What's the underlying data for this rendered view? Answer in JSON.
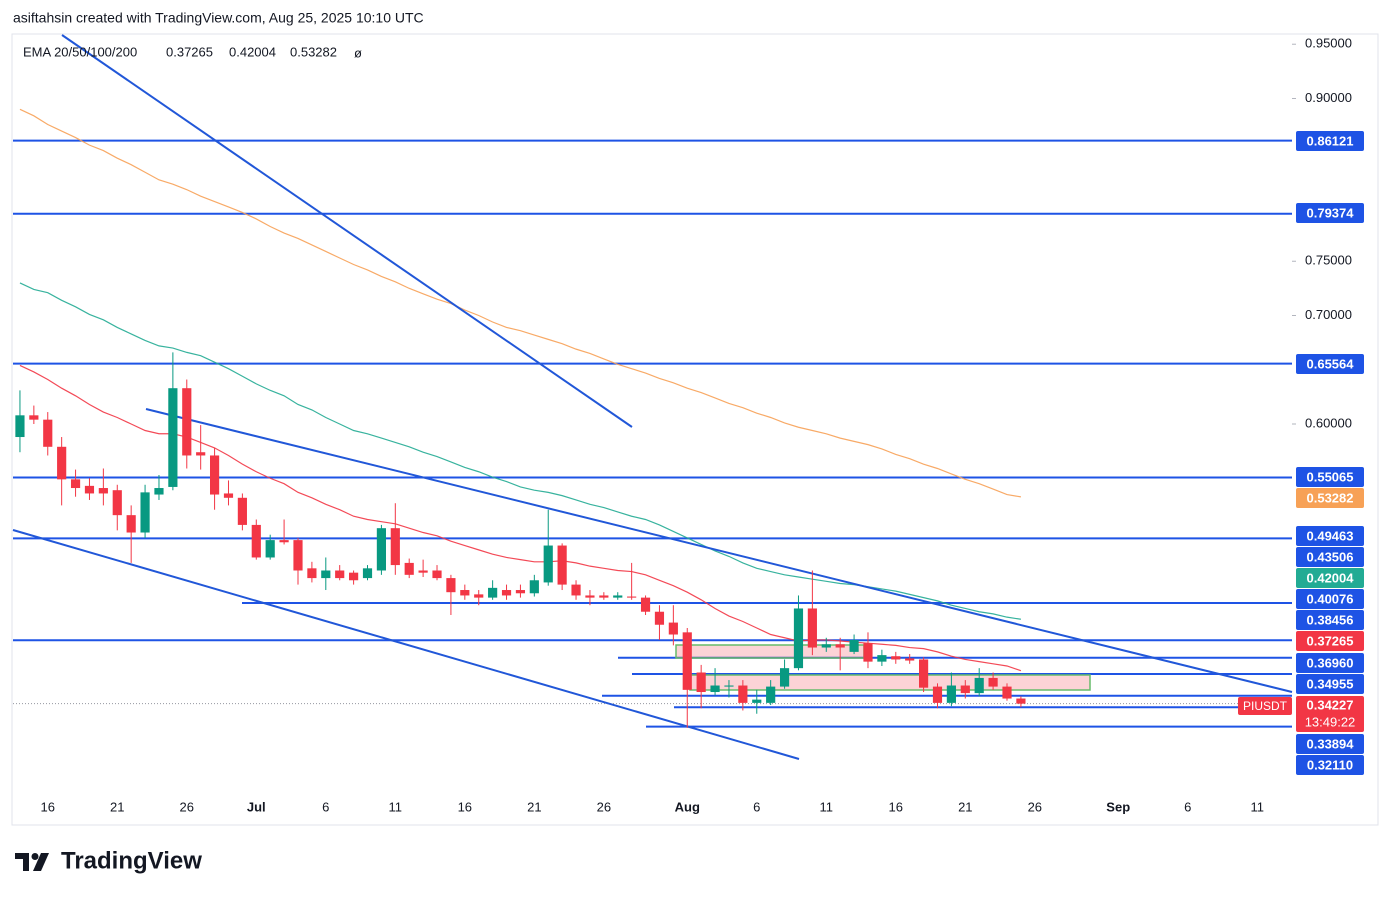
{
  "chart_data": {
    "type": "candlestick",
    "title": "asiftahsin created with TradingView.com, Aug 25, 2025 10:10 UTC",
    "indicator": {
      "name": "EMA 20/50/100/200",
      "missing": "ø"
    },
    "symbol": "PIUSDT",
    "countdown": "13:49:22",
    "categories": [
      null,
      null,
      "16",
      null,
      null,
      null,
      null,
      "21",
      null,
      null,
      null,
      null,
      "26",
      null,
      null,
      null,
      null,
      "Jul",
      null,
      null,
      null,
      null,
      "6",
      null,
      null,
      null,
      null,
      "11",
      null,
      null,
      null,
      null,
      "16",
      null,
      null,
      null,
      null,
      "21",
      null,
      null,
      null,
      null,
      "26",
      null,
      null,
      null,
      null,
      null,
      "Aug",
      null,
      null,
      null,
      null,
      "6",
      null,
      null,
      null,
      null,
      "11",
      null,
      null,
      null,
      null,
      "16",
      null,
      null,
      null,
      null,
      "21",
      null,
      null,
      null,
      null,
      "26",
      null,
      null,
      null,
      null,
      null,
      "Sep",
      null,
      null,
      null,
      null,
      "6",
      null,
      null,
      null,
      null,
      "11",
      null,
      null
    ],
    "open": [
      0.588,
      0.608,
      0.604,
      0.579,
      0.549,
      0.543,
      0.541,
      0.539,
      0.516,
      0.5,
      0.535,
      0.542,
      0.633,
      0.574,
      0.571,
      0.536,
      0.532,
      0.507,
      0.477,
      0.493,
      0.493,
      0.467,
      0.458,
      0.465,
      0.463,
      0.458,
      0.465,
      0.504,
      0.472,
      0.465,
      0.465,
      0.458,
      0.447,
      0.443,
      0.44,
      0.447,
      0.447,
      0.444,
      0.454,
      0.488,
      0.452,
      0.442,
      0.442,
      0.44,
      0.441,
      0.44,
      0.427,
      0.417,
      0.408,
      0.371,
      0.353,
      0.358,
      0.359,
      0.343,
      0.343,
      0.358,
      0.375,
      0.43,
      0.394,
      0.397,
      0.39,
      0.398,
      0.381,
      0.386,
      0.384,
      0.383,
      0.358,
      0.343,
      0.359,
      0.352,
      0.366,
      0.358,
      0.347,
      null,
      null,
      null,
      null,
      null,
      null,
      null,
      null,
      null,
      null,
      null,
      null,
      null,
      null,
      null,
      null,
      null,
      null,
      null
    ],
    "high": [
      0.631,
      0.617,
      0.611,
      0.588,
      0.558,
      0.55,
      0.559,
      0.544,
      0.525,
      0.544,
      0.553,
      0.666,
      0.641,
      0.599,
      0.578,
      0.548,
      0.536,
      0.512,
      0.498,
      0.512,
      0.495,
      0.473,
      0.477,
      0.47,
      0.465,
      0.47,
      0.507,
      0.527,
      0.476,
      0.475,
      0.47,
      0.461,
      0.452,
      0.447,
      0.456,
      0.452,
      0.452,
      0.461,
      0.521,
      0.49,
      0.456,
      0.447,
      0.445,
      0.445,
      0.472,
      0.442,
      0.433,
      0.433,
      0.412,
      0.378,
      0.375,
      0.364,
      0.364,
      0.355,
      0.364,
      0.383,
      0.442,
      0.465,
      0.403,
      0.403,
      0.406,
      0.408,
      0.392,
      0.39,
      0.388,
      0.385,
      0.361,
      0.371,
      0.364,
      0.375,
      0.371,
      0.361,
      0.349,
      null,
      null,
      null,
      null,
      null,
      null,
      null,
      null,
      null,
      null,
      null,
      null,
      null,
      null,
      null,
      null,
      null,
      null,
      null
    ],
    "low": [
      0.574,
      0.6,
      0.571,
      0.525,
      0.533,
      0.53,
      0.525,
      0.502,
      0.472,
      0.495,
      0.53,
      0.539,
      0.559,
      0.558,
      0.521,
      0.525,
      0.502,
      0.475,
      0.475,
      0.489,
      0.452,
      0.454,
      0.447,
      0.456,
      0.452,
      0.456,
      0.461,
      0.461,
      0.458,
      0.459,
      0.456,
      0.424,
      0.438,
      0.433,
      0.438,
      0.438,
      0.44,
      0.441,
      0.451,
      0.447,
      0.438,
      0.433,
      0.438,
      0.438,
      0.438,
      0.424,
      0.401,
      0.396,
      0.32,
      0.338,
      0.35,
      0.348,
      0.336,
      0.333,
      0.341,
      0.356,
      0.373,
      0.387,
      0.39,
      0.373,
      0.388,
      0.375,
      0.377,
      0.379,
      0.379,
      0.353,
      0.338,
      0.34,
      0.347,
      0.349,
      0.355,
      0.345,
      0.339,
      null,
      null,
      null,
      null,
      null,
      null,
      null,
      null,
      null,
      null,
      null,
      null,
      null,
      null,
      null,
      null,
      null,
      null,
      null
    ],
    "close": [
      0.608,
      0.604,
      0.579,
      0.549,
      0.541,
      0.536,
      0.536,
      0.516,
      0.5,
      0.537,
      0.541,
      0.633,
      0.571,
      0.571,
      0.535,
      0.532,
      0.507,
      0.477,
      0.493,
      0.491,
      0.465,
      0.458,
      0.465,
      0.458,
      0.456,
      0.467,
      0.504,
      0.47,
      0.461,
      0.463,
      0.458,
      0.445,
      0.442,
      0.44,
      0.449,
      0.442,
      0.444,
      0.456,
      0.488,
      0.452,
      0.442,
      0.44,
      0.44,
      0.442,
      0.44,
      0.427,
      0.415,
      0.406,
      0.355,
      0.353,
      0.359,
      0.359,
      0.343,
      0.346,
      0.358,
      0.375,
      0.43,
      0.394,
      0.397,
      0.394,
      0.401,
      0.381,
      0.387,
      0.383,
      0.382,
      0.357,
      0.343,
      0.359,
      0.352,
      0.366,
      0.358,
      0.347,
      0.34227,
      null,
      null,
      null,
      null,
      null,
      null,
      null,
      null,
      null,
      null,
      null,
      null,
      null,
      null,
      null,
      null,
      null,
      null,
      null
    ],
    "up_color": "#089981",
    "down_color": "#f23645",
    "series": [
      {
        "color": "#f23645",
        "values": [
          0.654,
          0.648,
          0.641,
          0.633,
          0.626,
          0.618,
          0.611,
          0.606,
          0.6,
          0.594,
          0.591,
          0.591,
          0.588,
          0.583,
          0.578,
          0.571,
          0.563,
          0.556,
          0.55,
          0.545,
          0.537,
          0.532,
          0.526,
          0.521,
          0.515,
          0.512,
          0.51,
          0.508,
          0.504,
          0.5,
          0.497,
          0.492,
          0.488,
          0.484,
          0.48,
          0.477,
          0.475,
          0.473,
          0.473,
          0.474,
          0.472,
          0.469,
          0.467,
          0.465,
          0.464,
          0.461,
          0.456,
          0.451,
          0.445,
          0.438,
          0.43,
          0.423,
          0.418,
          0.412,
          0.406,
          0.403,
          0.4,
          0.401,
          0.401,
          0.4,
          0.399,
          0.398,
          0.397,
          0.396,
          0.394,
          0.393,
          0.39,
          0.386,
          0.383,
          0.381,
          0.379,
          0.377,
          0.37265,
          null,
          null,
          null,
          null,
          null,
          null,
          null,
          null,
          null,
          null,
          null,
          null,
          null,
          null,
          null,
          null,
          null,
          null,
          null
        ]
      },
      {
        "color": "#22ab94",
        "values": [
          0.73,
          0.724,
          0.721,
          0.714,
          0.708,
          0.701,
          0.696,
          0.689,
          0.683,
          0.677,
          0.672,
          0.67,
          0.666,
          0.663,
          0.657,
          0.651,
          0.644,
          0.637,
          0.631,
          0.626,
          0.618,
          0.613,
          0.606,
          0.6,
          0.594,
          0.591,
          0.587,
          0.583,
          0.579,
          0.574,
          0.57,
          0.565,
          0.56,
          0.556,
          0.551,
          0.547,
          0.542,
          0.539,
          0.537,
          0.534,
          0.53,
          0.526,
          0.523,
          0.519,
          0.515,
          0.512,
          0.507,
          0.501,
          0.495,
          0.489,
          0.483,
          0.478,
          0.472,
          0.467,
          0.464,
          0.461,
          0.459,
          0.457,
          0.455,
          0.453,
          0.452,
          0.45,
          0.448,
          0.446,
          0.443,
          0.44,
          0.437,
          0.433,
          0.43,
          0.427,
          0.425,
          0.422,
          0.42004,
          null,
          null,
          null,
          null,
          null,
          null,
          null,
          null,
          null,
          null,
          null,
          null,
          null,
          null,
          null,
          null,
          null,
          null,
          null
        ]
      },
      {
        "color": "#f7a156",
        "values": [
          0.89,
          0.884,
          0.876,
          0.87,
          0.864,
          0.857,
          0.852,
          0.845,
          0.839,
          0.832,
          0.825,
          0.821,
          0.816,
          0.81,
          0.805,
          0.8,
          0.795,
          0.789,
          0.782,
          0.776,
          0.771,
          0.765,
          0.759,
          0.753,
          0.747,
          0.742,
          0.736,
          0.731,
          0.725,
          0.72,
          0.715,
          0.711,
          0.705,
          0.7,
          0.694,
          0.689,
          0.686,
          0.682,
          0.678,
          0.674,
          0.669,
          0.665,
          0.66,
          0.655,
          0.651,
          0.647,
          0.642,
          0.638,
          0.633,
          0.629,
          0.624,
          0.619,
          0.615,
          0.61,
          0.606,
          0.601,
          0.597,
          0.594,
          0.591,
          0.587,
          0.584,
          0.581,
          0.577,
          0.572,
          0.568,
          0.563,
          0.559,
          0.554,
          0.549,
          0.545,
          0.54,
          0.535,
          0.53282,
          null,
          null,
          null,
          null,
          null,
          null,
          null,
          null,
          null,
          null,
          null,
          null,
          null,
          null,
          null,
          null,
          null,
          null,
          null
        ]
      }
    ],
    "levels": [
      0.86121,
      0.79374,
      0.65564,
      0.55065,
      0.49463,
      0.43506,
      0.40076,
      0.38456,
      {
        "value": 0.3696,
        "label": "0.36960"
      },
      0.34955,
      0.33894,
      {
        "value": 0.3211,
        "label": "0.32110"
      }
    ],
    "level_color": "#1e53e5",
    "ylim": [
      0.2581,
      0.9585
    ],
    "yticks": [
      {
        "value": 0.95,
        "label": "0.95000"
      },
      {
        "value": 0.9,
        "label": "0.90000"
      },
      {
        "value": 0.75,
        "label": "0.75000"
      },
      {
        "value": 0.7,
        "label": "0.70000"
      },
      {
        "value": 0.6,
        "label": "0.60000"
      }
    ],
    "grid": false
  },
  "brand": "TradingView"
}
